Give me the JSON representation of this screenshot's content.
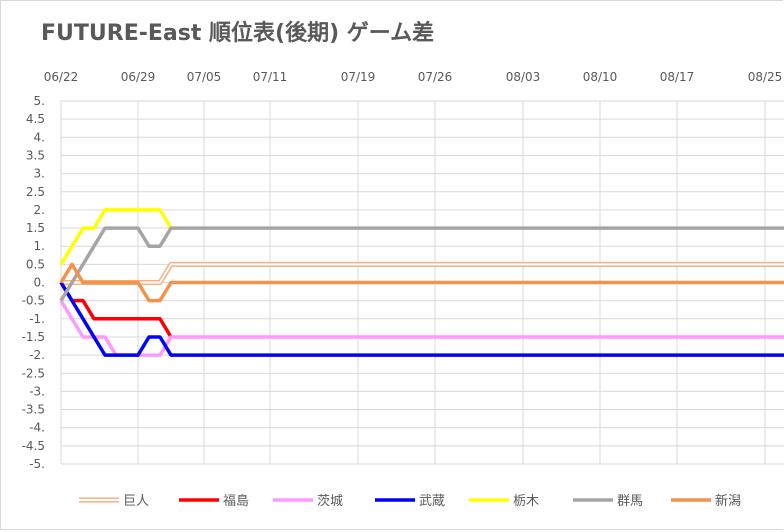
{
  "chart_data": {
    "type": "line",
    "title": "FUTURE-East 順位表(後期)  ゲーム差",
    "x_tick_labels": [
      "06/22",
      "06/29",
      "07/05",
      "07/11",
      "07/19",
      "07/26",
      "08/03",
      "08/10",
      "08/17",
      "08/25"
    ],
    "x_axis_position": "top",
    "y_tick_labels": [
      "5.",
      "4.5",
      "4.",
      "3.5",
      "3.",
      "2.5",
      "2.",
      "1.5",
      "1.",
      "0.5",
      "0.",
      "-0.5",
      "-1.",
      "-1.5",
      "-2.",
      "-2.5",
      "-3.",
      "-3.5",
      "-4.",
      "-4.5",
      "-5."
    ],
    "ylim": [
      -5,
      5
    ],
    "y_major_step": 0.5,
    "grid": true,
    "legend_position": "bottom",
    "x_dates": [
      "06/22",
      "06/23",
      "06/24",
      "06/25",
      "06/26",
      "06/27",
      "06/28",
      "06/29",
      "06/30",
      "07/01",
      "07/02",
      "07/03",
      "09/01"
    ],
    "series": [
      {
        "name": "巨人",
        "color": "#F4B183",
        "style": "double",
        "values": [
          0,
          0,
          0,
          0,
          0,
          0,
          0,
          0,
          0,
          0,
          0.5,
          0.5,
          0.5
        ]
      },
      {
        "name": "福島",
        "color": "#FF0000",
        "style": "solid",
        "values": [
          0,
          -0.5,
          -0.5,
          -1,
          -1,
          -1,
          -1,
          -1,
          -1,
          -1,
          -1.5,
          null,
          null
        ]
      },
      {
        "name": "茨城",
        "color": "#FF99FF",
        "style": "solid",
        "values": [
          -0.5,
          -1,
          -1.5,
          -1.5,
          -1.5,
          -2,
          -2,
          -2,
          -2,
          -2,
          -1.5,
          -1.5,
          -1.5
        ]
      },
      {
        "name": "武蔵",
        "color": "#0000FF",
        "style": "solid",
        "values": [
          0,
          -0.5,
          -1,
          -1.5,
          -2,
          -2,
          -2,
          -2,
          -1.5,
          -1.5,
          -2,
          -2,
          -2
        ]
      },
      {
        "name": "栃木",
        "color": "#FFFF00",
        "style": "solid",
        "values": [
          0.5,
          1,
          1.5,
          1.5,
          2,
          2,
          2,
          2,
          2,
          2,
          1.5,
          null,
          null
        ]
      },
      {
        "name": "群馬",
        "color": "#A5A5A5",
        "style": "solid",
        "values": [
          -0.5,
          0,
          0.5,
          1,
          1.5,
          1.5,
          1.5,
          1.5,
          1,
          1,
          1.5,
          1.5,
          1.5
        ]
      },
      {
        "name": "新潟",
        "color": "#F4924A",
        "style": "solid",
        "values": [
          0,
          0.5,
          0,
          0,
          0,
          0,
          0,
          0,
          -0.5,
          -0.5,
          0,
          0,
          0
        ]
      }
    ]
  }
}
